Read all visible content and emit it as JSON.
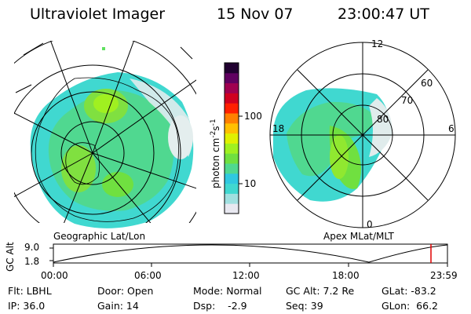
{
  "header": {
    "title": "Ultraviolet Imager",
    "date": "15 Nov 07",
    "time": "23:00:47 UT"
  },
  "colorbar": {
    "unit_label": "photon cm",
    "unit_exp1": "-2",
    "unit_mid": "s",
    "unit_exp2": "-1",
    "ticks": [
      "100",
      "10"
    ],
    "colors": [
      "#e8e8f0",
      "#a0e0e0",
      "#40d8d0",
      "#30c8e0",
      "#50d890",
      "#70e040",
      "#a0f020",
      "#e0f000",
      "#ffc000",
      "#ff8000",
      "#ff2000",
      "#d00020",
      "#a00050",
      "#600060",
      "#200030"
    ]
  },
  "left_map": {
    "caption": "Geographic Lat/Lon"
  },
  "right_map": {
    "caption": "Apex  MLat/MLT",
    "mlt_labels": {
      "top": "12",
      "left": "18",
      "right": "6",
      "bottom": "0"
    },
    "lat_labels": [
      "60",
      "70",
      "80"
    ]
  },
  "altitude_plot": {
    "ylabel": "GC Alt",
    "yticks": [
      "9.0",
      "1.8"
    ],
    "xticks": [
      "00:00",
      "06:00",
      "12:00",
      "18:00",
      "23:59"
    ],
    "marker_color": "#e00000"
  },
  "info": {
    "flt": "Flt: LBHL",
    "ip": "IP: 36.0",
    "door": "Door: Open",
    "gain": "Gain: 14",
    "mode": "Mode: Normal",
    "dsp": "Dsp:    -2.9",
    "gcalt": "GC Alt: 7.2 Re",
    "seq": "Seq: 39",
    "glat": "GLat: -83.2",
    "glon": "GLon:  66.2"
  }
}
